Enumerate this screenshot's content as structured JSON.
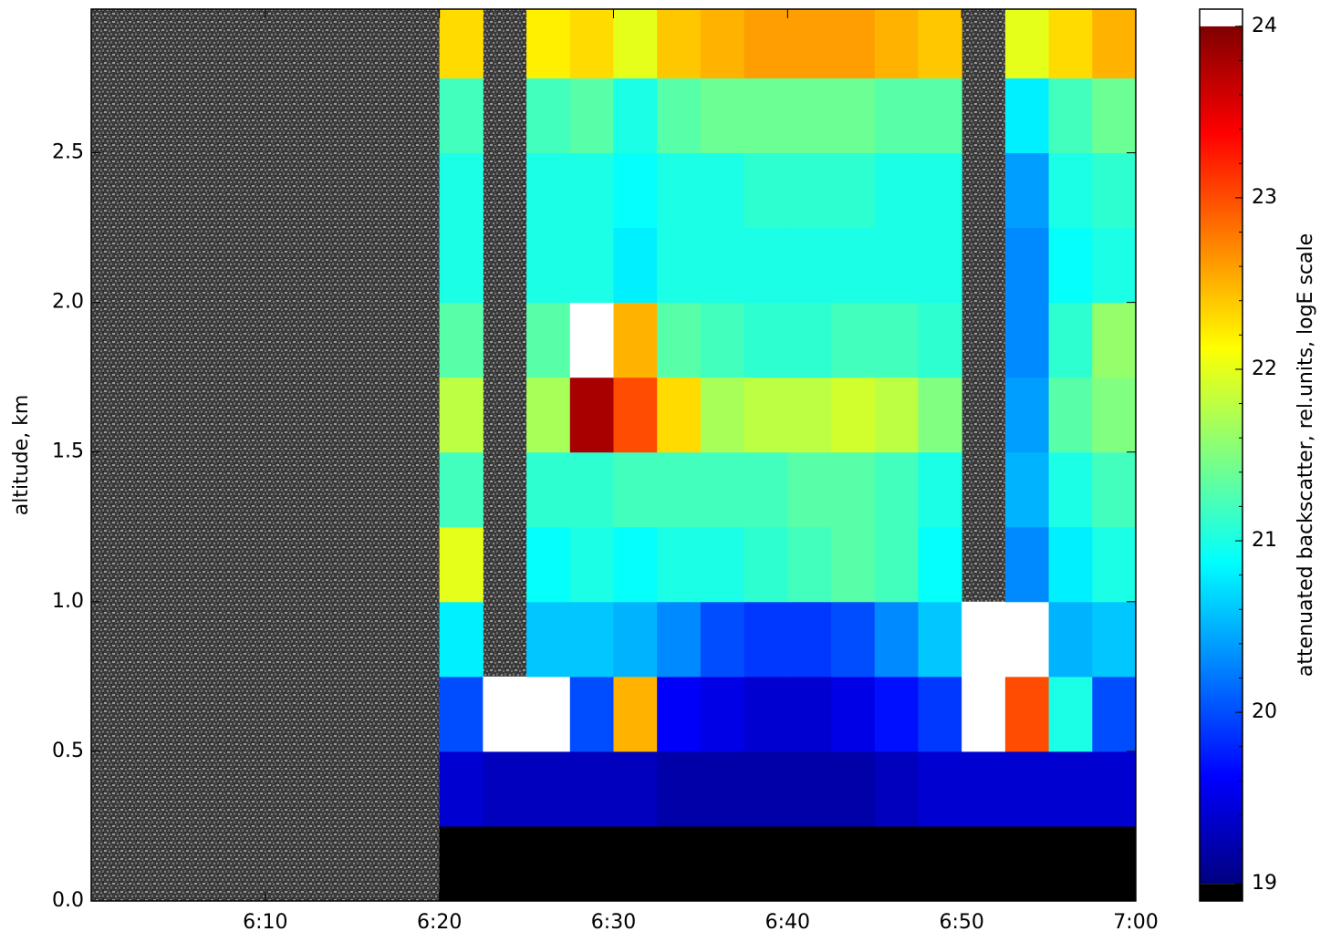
{
  "chart_data": {
    "type": "heatmap",
    "ylabel": "altitude, km",
    "colorbar_label": "attenuated backscatter, rel.units, logE scale",
    "xlim": [
      360,
      420
    ],
    "xticks": [
      {
        "value": 370,
        "label": "6:10"
      },
      {
        "value": 380,
        "label": "6:20"
      },
      {
        "value": 390,
        "label": "6:30"
      },
      {
        "value": 400,
        "label": "6:40"
      },
      {
        "value": 410,
        "label": "6:50"
      },
      {
        "value": 420,
        "label": "7:00"
      }
    ],
    "ylim": [
      0,
      2.98
    ],
    "yticks": [
      {
        "value": 0,
        "label": "0.0"
      },
      0.5,
      {
        "value": 1,
        "label": "1.0"
      },
      1.5,
      {
        "value": 2,
        "label": "2.0"
      },
      2.5
    ],
    "clim": [
      18.9,
      24.1
    ],
    "vmin": 19,
    "vmax": 24,
    "under_color": "#000000",
    "over_color": "#ffffff",
    "cticks": [
      19,
      20,
      21,
      22,
      23,
      24
    ],
    "x_edges": [
      360,
      362.5,
      365,
      367.5,
      370,
      372.5,
      375,
      377.5,
      380,
      382.5,
      385,
      387.5,
      390,
      392.5,
      395,
      397.5,
      400,
      402.5,
      405,
      407.5,
      410,
      412.5,
      415,
      417.5,
      420
    ],
    "y_edges": [
      0,
      0.25,
      0.5,
      0.75,
      1.0,
      1.25,
      1.5,
      1.75,
      2.0,
      2.25,
      2.5,
      2.75,
      3.0
    ],
    "z": [
      [
        null,
        null,
        null,
        null,
        null,
        null,
        null,
        null,
        18.9,
        18.9,
        18.9,
        18.9,
        18.9,
        18.9,
        18.9,
        18.9,
        18.9,
        18.9,
        18.9,
        18.9,
        18.9,
        18.9,
        18.9,
        18.9
      ],
      [
        null,
        null,
        null,
        null,
        null,
        null,
        null,
        null,
        19.4,
        19.3,
        19.3,
        19.3,
        19.3,
        19.2,
        19.2,
        19.2,
        19.2,
        19.2,
        19.3,
        19.4,
        19.4,
        19.4,
        19.4,
        19.4
      ],
      [
        null,
        null,
        null,
        null,
        null,
        null,
        null,
        null,
        20.0,
        24.1,
        24.1,
        20.0,
        22.5,
        19.6,
        19.5,
        19.4,
        19.4,
        19.5,
        19.7,
        19.9,
        24.1,
        23.0,
        21.0,
        20.0
      ],
      [
        null,
        null,
        null,
        null,
        null,
        null,
        null,
        null,
        20.8,
        null,
        20.6,
        20.6,
        20.5,
        20.3,
        20.0,
        19.9,
        19.9,
        20.0,
        20.3,
        20.6,
        24.1,
        24.1,
        20.5,
        20.6
      ],
      [
        null,
        null,
        null,
        null,
        null,
        null,
        null,
        null,
        22.0,
        null,
        20.9,
        21.0,
        20.9,
        21.0,
        21.0,
        21.1,
        21.2,
        21.3,
        21.2,
        20.9,
        null,
        20.3,
        20.8,
        21.0
      ],
      [
        null,
        null,
        null,
        null,
        null,
        null,
        null,
        null,
        21.2,
        null,
        21.1,
        21.1,
        21.2,
        21.2,
        21.2,
        21.2,
        21.3,
        21.3,
        21.2,
        21.0,
        null,
        20.5,
        21.0,
        21.2
      ],
      [
        null,
        null,
        null,
        null,
        null,
        null,
        null,
        null,
        21.8,
        null,
        21.7,
        23.8,
        23.0,
        22.3,
        21.7,
        21.8,
        21.8,
        21.9,
        21.8,
        21.5,
        null,
        20.4,
        21.3,
        21.5
      ],
      [
        null,
        null,
        null,
        null,
        null,
        null,
        null,
        null,
        21.3,
        null,
        21.3,
        24.1,
        22.5,
        21.3,
        21.2,
        21.1,
        21.1,
        21.2,
        21.2,
        21.1,
        null,
        20.3,
        21.1,
        21.6
      ],
      [
        null,
        null,
        null,
        null,
        null,
        null,
        null,
        null,
        21.0,
        null,
        21.0,
        21.0,
        20.8,
        21.0,
        21.0,
        21.0,
        21.0,
        21.0,
        21.0,
        21.0,
        null,
        20.3,
        20.9,
        21.0
      ],
      [
        null,
        null,
        null,
        null,
        null,
        null,
        null,
        null,
        21.0,
        null,
        21.0,
        21.0,
        20.9,
        21.0,
        21.0,
        21.1,
        21.1,
        21.1,
        21.0,
        21.0,
        null,
        20.4,
        21.0,
        21.1
      ],
      [
        null,
        null,
        null,
        null,
        null,
        null,
        null,
        null,
        21.2,
        null,
        21.2,
        21.3,
        21.0,
        21.3,
        21.4,
        21.4,
        21.4,
        21.4,
        21.3,
        21.3,
        null,
        20.8,
        21.2,
        21.4
      ],
      [
        null,
        null,
        null,
        null,
        null,
        null,
        null,
        null,
        22.3,
        null,
        22.2,
        22.3,
        22.0,
        22.4,
        22.5,
        22.6,
        22.6,
        22.6,
        22.5,
        22.4,
        null,
        22.0,
        22.3,
        22.5
      ]
    ]
  }
}
